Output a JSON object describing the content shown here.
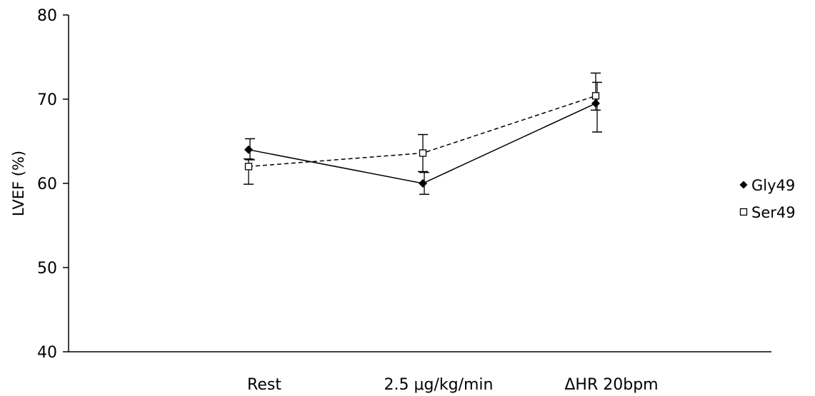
{
  "chart_data": {
    "type": "line",
    "title": "",
    "xlabel": "",
    "ylabel": "LVEF (%)",
    "categories": [
      "Rest",
      "2.5 μg/kg/min",
      "ΔHR 20bpm"
    ],
    "ylim": [
      40,
      80
    ],
    "yticks": [
      40,
      50,
      60,
      70,
      80
    ],
    "grid": false,
    "legend_position": "right",
    "series": [
      {
        "name": "Gly49",
        "values": [
          64.0,
          60.0,
          69.5
        ],
        "error_upper": [
          65.3,
          61.3,
          72.0
        ],
        "error_lower": [
          62.8,
          58.7,
          66.1
        ],
        "marker": "filled-diamond",
        "line_style": "solid",
        "color": "#000000"
      },
      {
        "name": "Ser49",
        "values": [
          62.0,
          63.6,
          70.4
        ],
        "error_upper": [
          62.9,
          65.8,
          73.1
        ],
        "error_lower": [
          59.9,
          61.4,
          68.7
        ],
        "marker": "open-square",
        "line_style": "dashed",
        "color": "#000000"
      }
    ]
  }
}
